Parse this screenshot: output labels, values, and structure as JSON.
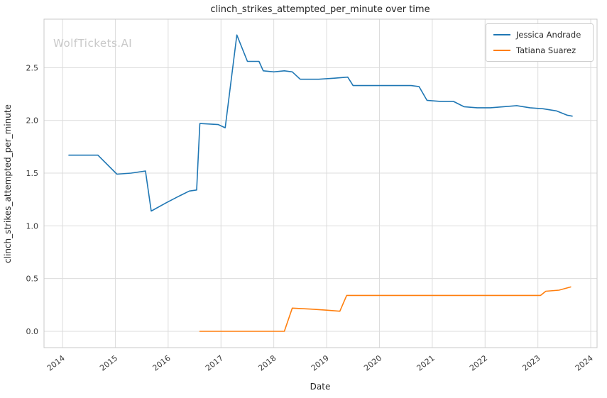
{
  "chart_data": {
    "type": "line",
    "title": "clinch_strikes_attempted_per_minute over time",
    "xlabel": "Date",
    "ylabel": "clinch_strikes_attempted_per_minute",
    "watermark": "WolfTickets.AI",
    "grid": true,
    "legend_position": "top-right",
    "xlim": [
      2013.65,
      2024.12
    ],
    "ylim": [
      -0.155,
      2.96
    ],
    "xticks": [
      2014,
      2015,
      2016,
      2017,
      2018,
      2019,
      2020,
      2021,
      2022,
      2023,
      2024
    ],
    "yticks": [
      0.0,
      0.5,
      1.0,
      1.5,
      2.0,
      2.5
    ],
    "colors": {
      "grid": "#dcdcdc",
      "plot_border": "#c9c9c9",
      "text": "#262626",
      "watermark": "#c9c9c9"
    },
    "series": [
      {
        "name": "Jessica Andrade",
        "color": "#1f77b4",
        "points": [
          [
            2014.12,
            1.67
          ],
          [
            2014.67,
            1.67
          ],
          [
            2015.03,
            1.49
          ],
          [
            2015.3,
            1.5
          ],
          [
            2015.57,
            1.52
          ],
          [
            2015.68,
            1.14
          ],
          [
            2015.97,
            1.22
          ],
          [
            2016.2,
            1.28
          ],
          [
            2016.4,
            1.33
          ],
          [
            2016.54,
            1.34
          ],
          [
            2016.6,
            1.97
          ],
          [
            2016.95,
            1.96
          ],
          [
            2017.08,
            1.93
          ],
          [
            2017.3,
            2.81
          ],
          [
            2017.5,
            2.56
          ],
          [
            2017.72,
            2.56
          ],
          [
            2017.8,
            2.47
          ],
          [
            2018.0,
            2.46
          ],
          [
            2018.2,
            2.47
          ],
          [
            2018.35,
            2.46
          ],
          [
            2018.5,
            2.39
          ],
          [
            2018.85,
            2.39
          ],
          [
            2019.15,
            2.4
          ],
          [
            2019.4,
            2.41
          ],
          [
            2019.5,
            2.33
          ],
          [
            2019.9,
            2.33
          ],
          [
            2020.3,
            2.33
          ],
          [
            2020.6,
            2.33
          ],
          [
            2020.75,
            2.32
          ],
          [
            2020.9,
            2.19
          ],
          [
            2021.15,
            2.18
          ],
          [
            2021.4,
            2.18
          ],
          [
            2021.6,
            2.13
          ],
          [
            2021.85,
            2.12
          ],
          [
            2022.1,
            2.12
          ],
          [
            2022.35,
            2.13
          ],
          [
            2022.6,
            2.14
          ],
          [
            2022.85,
            2.12
          ],
          [
            2023.1,
            2.11
          ],
          [
            2023.35,
            2.09
          ],
          [
            2023.55,
            2.05
          ],
          [
            2023.65,
            2.04
          ]
        ]
      },
      {
        "name": "Tatiana Suarez",
        "color": "#ff7f0e",
        "points": [
          [
            2016.6,
            0.0
          ],
          [
            2017.2,
            0.0
          ],
          [
            2017.8,
            0.0
          ],
          [
            2018.1,
            0.0
          ],
          [
            2018.2,
            0.0
          ],
          [
            2018.35,
            0.22
          ],
          [
            2018.7,
            0.21
          ],
          [
            2019.0,
            0.2
          ],
          [
            2019.25,
            0.19
          ],
          [
            2019.38,
            0.34
          ],
          [
            2019.8,
            0.34
          ],
          [
            2020.4,
            0.34
          ],
          [
            2021.0,
            0.34
          ],
          [
            2021.6,
            0.34
          ],
          [
            2022.2,
            0.34
          ],
          [
            2022.8,
            0.34
          ],
          [
            2023.05,
            0.34
          ],
          [
            2023.15,
            0.38
          ],
          [
            2023.4,
            0.39
          ],
          [
            2023.62,
            0.42
          ]
        ]
      }
    ]
  }
}
